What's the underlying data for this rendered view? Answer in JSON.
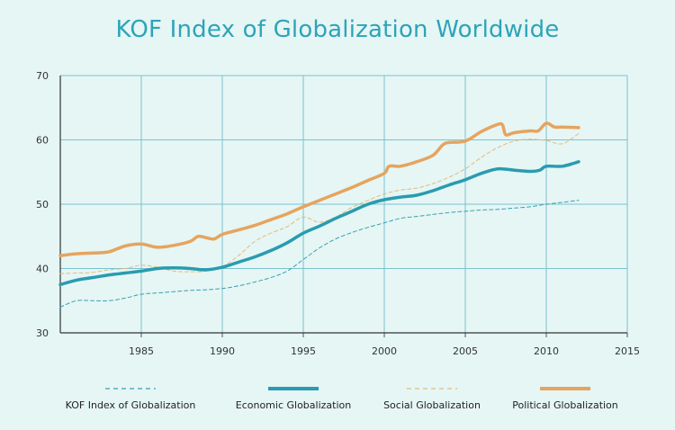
{
  "chart_data": {
    "type": "line",
    "title": "KOF Index of Globalization Worldwide",
    "xlabel": "",
    "ylabel": "",
    "xlim": [
      1980,
      2015
    ],
    "ylim": [
      30,
      70
    ],
    "x_ticks": [
      1985,
      1990,
      1995,
      2000,
      2005,
      2010,
      2015
    ],
    "y_ticks": [
      30,
      40,
      50,
      60,
      70
    ],
    "grid": true,
    "legend_position": "bottom",
    "series": [
      {
        "name": "KOF Index of Globalization",
        "color": "#3a9fb0",
        "style": "dashed-thin",
        "points": [
          [
            1980,
            34.0
          ],
          [
            1981,
            35.0
          ],
          [
            1982,
            35.0
          ],
          [
            1983,
            35.0
          ],
          [
            1984,
            35.4
          ],
          [
            1985,
            36.0
          ],
          [
            1986,
            36.2
          ],
          [
            1987,
            36.4
          ],
          [
            1988,
            36.6
          ],
          [
            1989,
            36.7
          ],
          [
            1990,
            36.9
          ],
          [
            1991,
            37.3
          ],
          [
            1992,
            37.9
          ],
          [
            1993,
            38.6
          ],
          [
            1994,
            39.6
          ],
          [
            1995,
            41.4
          ],
          [
            1996,
            43.2
          ],
          [
            1997,
            44.6
          ],
          [
            1998,
            45.6
          ],
          [
            1999,
            46.4
          ],
          [
            2000,
            47.1
          ],
          [
            2001,
            47.8
          ],
          [
            2002,
            48.1
          ],
          [
            2003,
            48.4
          ],
          [
            2004,
            48.7
          ],
          [
            2005,
            48.9
          ],
          [
            2006,
            49.1
          ],
          [
            2007,
            49.2
          ],
          [
            2008,
            49.4
          ],
          [
            2009,
            49.6
          ],
          [
            2010,
            50.0
          ],
          [
            2011,
            50.3
          ],
          [
            2012,
            50.6
          ]
        ]
      },
      {
        "name": "Economic Globalization",
        "color": "#2a9bb0",
        "style": "solid-thick",
        "points": [
          [
            1980,
            37.5
          ],
          [
            1981,
            38.2
          ],
          [
            1982,
            38.6
          ],
          [
            1983,
            39.0
          ],
          [
            1984,
            39.3
          ],
          [
            1985,
            39.6
          ],
          [
            1986,
            40.0
          ],
          [
            1987,
            40.1
          ],
          [
            1988,
            40.0
          ],
          [
            1989,
            39.8
          ],
          [
            1990,
            40.2
          ],
          [
            1991,
            41.0
          ],
          [
            1992,
            41.8
          ],
          [
            1993,
            42.8
          ],
          [
            1994,
            44.0
          ],
          [
            1995,
            45.5
          ],
          [
            1996,
            46.6
          ],
          [
            1997,
            47.8
          ],
          [
            1998,
            48.9
          ],
          [
            1999,
            50.0
          ],
          [
            2000,
            50.7
          ],
          [
            2001,
            51.1
          ],
          [
            2002,
            51.4
          ],
          [
            2003,
            52.1
          ],
          [
            2004,
            53.0
          ],
          [
            2005,
            53.8
          ],
          [
            2006,
            54.8
          ],
          [
            2007,
            55.5
          ],
          [
            2008,
            55.3
          ],
          [
            2009,
            55.1
          ],
          [
            2009.6,
            55.3
          ],
          [
            2010,
            55.9
          ],
          [
            2011,
            55.9
          ],
          [
            2012,
            56.6
          ]
        ]
      },
      {
        "name": "Social Globalization",
        "color": "#e8b97a",
        "style": "dashed-thin",
        "points": [
          [
            1980,
            39.2
          ],
          [
            1981,
            39.3
          ],
          [
            1982,
            39.4
          ],
          [
            1983,
            39.8
          ],
          [
            1984,
            40.0
          ],
          [
            1985,
            40.5
          ],
          [
            1986,
            40.2
          ],
          [
            1987,
            39.6
          ],
          [
            1988,
            39.5
          ],
          [
            1989,
            39.6
          ],
          [
            1990,
            40.3
          ],
          [
            1991,
            42.0
          ],
          [
            1992,
            44.2
          ],
          [
            1993,
            45.5
          ],
          [
            1994,
            46.5
          ],
          [
            1995,
            48.0
          ],
          [
            1996,
            47.2
          ],
          [
            1997,
            48.0
          ],
          [
            1998,
            49.5
          ],
          [
            1999,
            50.6
          ],
          [
            2000,
            51.6
          ],
          [
            2001,
            52.2
          ],
          [
            2002,
            52.5
          ],
          [
            2003,
            53.2
          ],
          [
            2004,
            54.2
          ],
          [
            2005,
            55.5
          ],
          [
            2006,
            57.3
          ],
          [
            2007,
            58.8
          ],
          [
            2008,
            59.8
          ],
          [
            2009,
            60.1
          ],
          [
            2010,
            59.9
          ],
          [
            2011,
            59.4
          ],
          [
            2012,
            61.0
          ]
        ]
      },
      {
        "name": "Political Globalization",
        "color": "#e6a45e",
        "style": "solid-thick",
        "points": [
          [
            1980,
            42.0
          ],
          [
            1981,
            42.3
          ],
          [
            1982,
            42.4
          ],
          [
            1983,
            42.6
          ],
          [
            1984,
            43.5
          ],
          [
            1985,
            43.8
          ],
          [
            1986,
            43.3
          ],
          [
            1987,
            43.6
          ],
          [
            1988,
            44.2
          ],
          [
            1988.5,
            45.0
          ],
          [
            1989,
            44.8
          ],
          [
            1989.5,
            44.6
          ],
          [
            1990,
            45.3
          ],
          [
            1991,
            46.0
          ],
          [
            1992,
            46.7
          ],
          [
            1993,
            47.6
          ],
          [
            1994,
            48.5
          ],
          [
            1995,
            49.6
          ],
          [
            1996,
            50.6
          ],
          [
            1997,
            51.6
          ],
          [
            1998,
            52.6
          ],
          [
            1999,
            53.7
          ],
          [
            2000,
            54.8
          ],
          [
            2000.3,
            55.9
          ],
          [
            2001,
            55.9
          ],
          [
            2002,
            56.6
          ],
          [
            2003,
            57.6
          ],
          [
            2003.6,
            59.2
          ],
          [
            2004,
            59.6
          ],
          [
            2005,
            59.8
          ],
          [
            2006,
            61.3
          ],
          [
            2007,
            62.4
          ],
          [
            2007.3,
            62.3
          ],
          [
            2007.5,
            60.8
          ],
          [
            2008,
            61.1
          ],
          [
            2009,
            61.4
          ],
          [
            2009.5,
            61.4
          ],
          [
            2010,
            62.6
          ],
          [
            2010.5,
            62.0
          ],
          [
            2011,
            62.0
          ],
          [
            2012,
            61.9
          ]
        ]
      }
    ]
  },
  "legend": [
    {
      "label": "KOF Index of Globalization",
      "color": "#3a9fb0",
      "style": "dashed"
    },
    {
      "label": "Economic Globalization",
      "color": "#2a9bb0",
      "style": "solid"
    },
    {
      "label": "Social Globalization",
      "color": "#e8b97a",
      "style": "dashed"
    },
    {
      "label": "Political Globalization",
      "color": "#e6a45e",
      "style": "solid"
    }
  ]
}
